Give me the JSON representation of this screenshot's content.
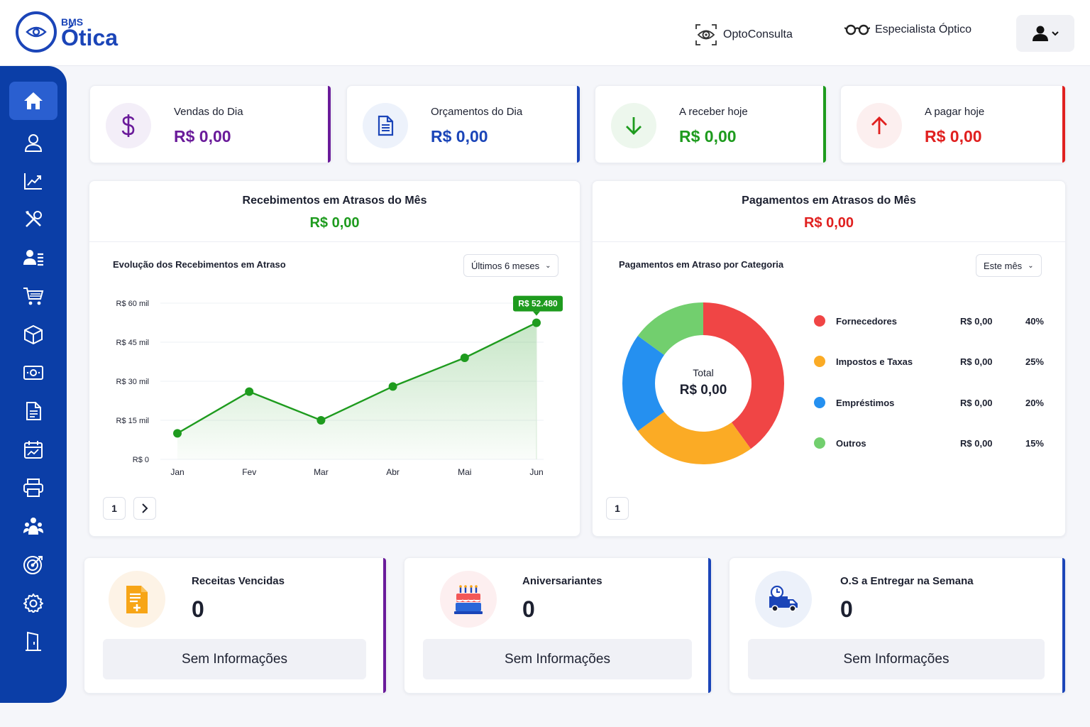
{
  "brand": {
    "small": "BMS",
    "name": "Ótica"
  },
  "topnav": {
    "consulta": "OptoConsulta",
    "especialista": "Especialista Óptico"
  },
  "sidebar": [
    "home-icon",
    "user-icon",
    "chart-icon",
    "tools-icon",
    "users-list-icon",
    "cart-icon",
    "box-icon",
    "cash-icon",
    "document-icon",
    "calendar-icon",
    "printer-icon",
    "team-icon",
    "target-icon",
    "gear-icon",
    "building-icon"
  ],
  "stats": [
    {
      "label": "Vendas do Dia",
      "value": "R$ 0,00",
      "color": "#6a1b9a"
    },
    {
      "label": "Orçamentos do Dia",
      "value": "R$ 0,00",
      "color": "#1b45b8"
    },
    {
      "label": "A receber hoje",
      "value": "R$ 0,00",
      "color": "#1e9b1e"
    },
    {
      "label": "A pagar hoje",
      "value": "R$ 0,00",
      "color": "#e0201f"
    }
  ],
  "receb": {
    "title": "Recebimentos em Atrasos do Mês",
    "amount": "R$ 0,00",
    "subtitle": "Evolução dos Recebimentos em Atraso",
    "period": "Últimos 6 meses",
    "page": "1"
  },
  "pagam": {
    "title": "Pagamentos em Atrasos do Mês",
    "amount": "R$ 0,00",
    "subtitle": "Pagamentos em Atraso por Categoria",
    "period": "Este mês",
    "page": "1",
    "total_label": "Total",
    "total_value": "R$ 0,00"
  },
  "chart_data": [
    {
      "type": "line",
      "x": [
        "Jan",
        "Fev",
        "Mar",
        "Abr",
        "Mai",
        "Jun"
      ],
      "y": [
        10000,
        26000,
        15000,
        28000,
        39000,
        52480
      ],
      "yticks": [
        "R$ 60 mil",
        "R$ 45 mil",
        "R$ 30 mil",
        "R$ 15 mil",
        "R$ 0"
      ],
      "ytick_values": [
        60000,
        45000,
        30000,
        15000,
        0
      ],
      "ylim": [
        0,
        60000
      ],
      "highlight_label": "R$ 52.480",
      "color": "#1e9b1e"
    },
    {
      "type": "pie",
      "labels": [
        "Fornecedores",
        "Impostos e Taxas",
        "Empréstimos",
        "Outros"
      ],
      "values": [
        40,
        25,
        20,
        15
      ],
      "amounts": [
        "R$ 0,00",
        "R$ 0,00",
        "R$ 0,00",
        "R$ 0,00"
      ],
      "percents": [
        "40%",
        "25%",
        "20%",
        "15%"
      ],
      "colors": [
        "#f04545",
        "#fbab25",
        "#2590f0",
        "#72cf6e"
      ]
    }
  ],
  "bottom": [
    {
      "label": "Receitas Vencidas",
      "count": "0",
      "empty": "Sem Informações",
      "color": "#6a1b9a",
      "icon": "prescription-icon"
    },
    {
      "label": "Aniversariantes",
      "count": "0",
      "empty": "Sem Informações",
      "color": "#1b45b8",
      "icon": "cake-icon"
    },
    {
      "label": "O.S a Entregar na Semana",
      "count": "0",
      "empty": "Sem Informações",
      "color": "#1b45b8",
      "icon": "delivery-truck-icon"
    }
  ]
}
